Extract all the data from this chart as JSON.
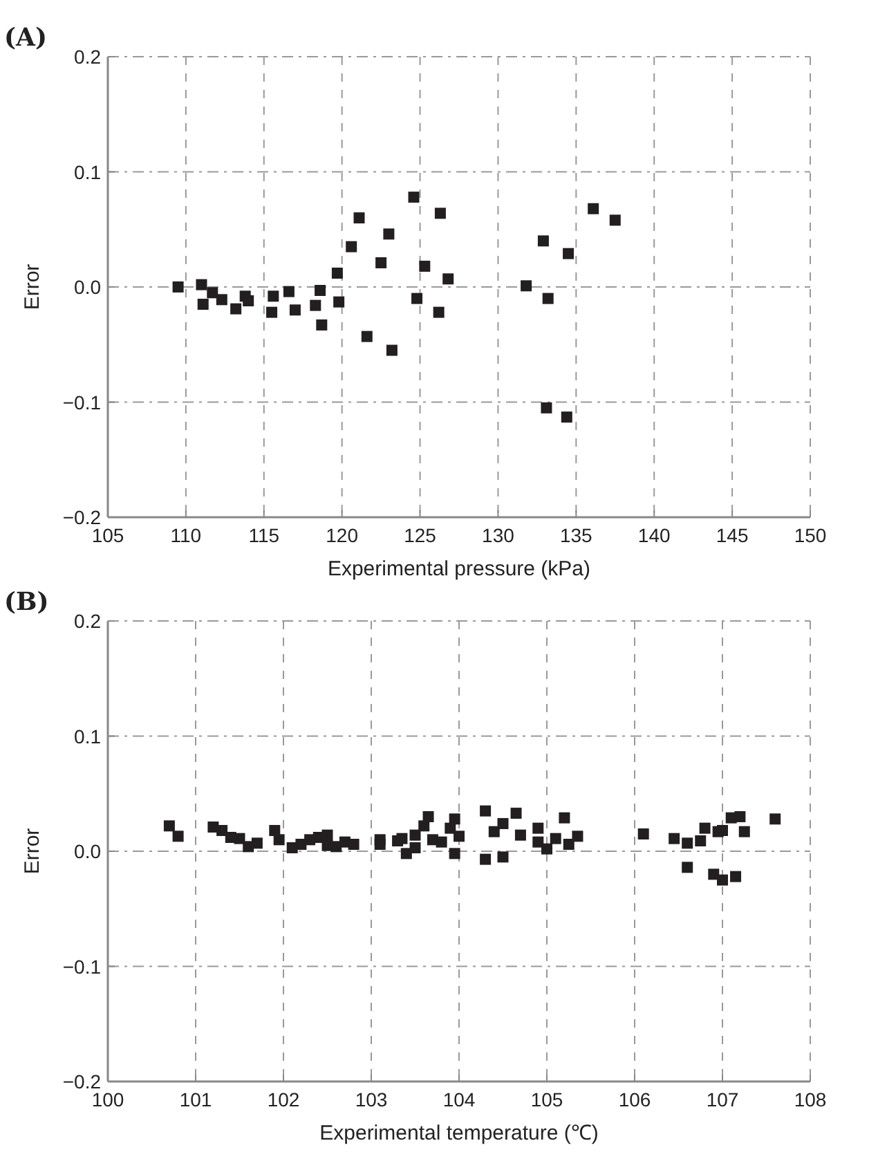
{
  "chart_data": [
    {
      "type": "scatter",
      "title": "(A)",
      "xlabel": "Experimental pressure (kPa)",
      "ylabel": "Error",
      "xlim": [
        105,
        150
      ],
      "xticks": [
        105,
        110,
        115,
        120,
        125,
        130,
        135,
        140,
        145,
        150
      ],
      "ylim": [
        -0.2,
        0.2
      ],
      "yticks": [
        {
          "value": -0.2,
          "label": "−0.2"
        },
        {
          "value": -0.1,
          "label": "−0.1"
        },
        {
          "value": 0,
          "label": "0.0"
        },
        {
          "value": 0.1,
          "label": "0.1"
        },
        {
          "value": 0.2,
          "label": "0.2"
        }
      ],
      "grid": true,
      "marker": "square",
      "series": [
        {
          "color": "#231f20",
          "x": [
            109.5,
            111.0,
            111.1,
            111.7,
            112.3,
            113.2,
            113.8,
            114.0,
            115.5,
            115.6,
            116.6,
            117.0,
            118.3,
            118.6,
            118.7,
            119.7,
            119.8,
            120.6,
            121.1,
            121.6,
            122.5,
            123.0,
            123.2,
            124.6,
            124.8,
            125.3,
            126.2,
            126.3,
            126.8,
            131.8,
            132.9,
            133.2,
            133.1,
            134.5,
            134.4,
            136.1,
            137.5
          ],
          "values": [
            0.0,
            0.002,
            -0.015,
            -0.005,
            -0.011,
            -0.019,
            -0.008,
            -0.012,
            -0.022,
            -0.008,
            -0.004,
            -0.02,
            -0.016,
            -0.003,
            -0.033,
            0.012,
            -0.013,
            0.035,
            0.06,
            -0.043,
            0.021,
            0.046,
            -0.055,
            0.078,
            -0.01,
            0.018,
            -0.022,
            0.064,
            0.007,
            0.001,
            0.04,
            -0.01,
            -0.105,
            0.029,
            -0.113,
            0.068,
            0.058
          ]
        }
      ]
    },
    {
      "type": "scatter",
      "title": "(B)",
      "xlabel": "Experimental temperature (℃)",
      "ylabel": "Error",
      "xlim": [
        100,
        108
      ],
      "xticks": [
        100,
        101,
        102,
        103,
        104,
        105,
        106,
        107,
        108
      ],
      "ylim": [
        -0.2,
        0.2
      ],
      "yticks": [
        {
          "value": -0.2,
          "label": "−0.2"
        },
        {
          "value": -0.1,
          "label": "−0.1"
        },
        {
          "value": 0,
          "label": "0.0"
        },
        {
          "value": 0.1,
          "label": "0.1"
        },
        {
          "value": 0.2,
          "label": "0.2"
        }
      ],
      "grid": true,
      "marker": "square",
      "series": [
        {
          "color": "#231f20",
          "x": [
            100.7,
            100.8,
            101.2,
            101.3,
            101.4,
            101.5,
            101.6,
            101.7,
            101.9,
            101.95,
            102.1,
            102.2,
            102.3,
            102.4,
            102.5,
            102.5,
            102.6,
            102.7,
            102.8,
            103.1,
            103.1,
            103.3,
            103.35,
            103.4,
            103.5,
            103.5,
            103.6,
            103.65,
            103.7,
            103.8,
            103.9,
            103.95,
            104.0,
            103.95,
            104.3,
            104.3,
            104.4,
            104.5,
            104.5,
            104.65,
            104.7,
            104.9,
            104.9,
            105.0,
            105.1,
            105.2,
            105.25,
            105.35,
            106.1,
            106.45,
            106.6,
            106.6,
            106.75,
            106.8,
            106.9,
            106.95,
            107.0,
            107.0,
            107.1,
            107.15,
            107.2,
            107.25,
            107.6
          ],
          "values": [
            0.022,
            0.013,
            0.021,
            0.018,
            0.012,
            0.011,
            0.004,
            0.007,
            0.018,
            0.01,
            0.003,
            0.006,
            0.01,
            0.012,
            0.014,
            0.005,
            0.004,
            0.008,
            0.006,
            0.01,
            0.006,
            0.009,
            0.011,
            -0.002,
            0.003,
            0.014,
            0.022,
            0.03,
            0.01,
            0.008,
            0.02,
            0.028,
            0.013,
            -0.002,
            0.035,
            -0.007,
            0.017,
            0.024,
            -0.005,
            0.033,
            0.014,
            0.02,
            0.008,
            0.002,
            0.011,
            0.029,
            0.006,
            0.013,
            0.015,
            0.011,
            0.007,
            -0.014,
            0.009,
            0.02,
            -0.02,
            0.017,
            0.018,
            -0.025,
            0.029,
            -0.022,
            0.03,
            0.017,
            0.028
          ]
        }
      ]
    }
  ]
}
